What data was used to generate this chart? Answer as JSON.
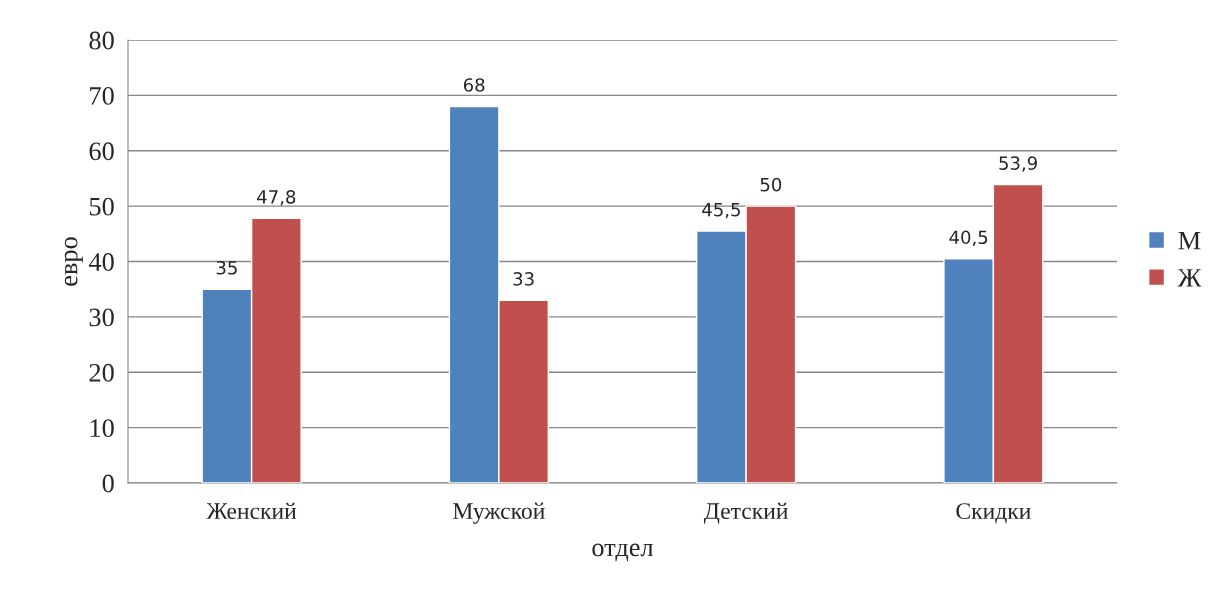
{
  "chart_data": {
    "type": "bar",
    "xlabel": "отдел",
    "ylabel": "евро",
    "categories": [
      "Женский",
      "Мужской",
      "Детский",
      "Скидки"
    ],
    "series": [
      {
        "name": "М",
        "color": "#4f81bd",
        "values": [
          35,
          68,
          45.5,
          40.5
        ],
        "value_labels": [
          "35",
          "68",
          "45,5",
          "40,5"
        ]
      },
      {
        "name": "Ж",
        "color": "#c0504d",
        "values": [
          47.8,
          33,
          50,
          53.9
        ],
        "value_labels": [
          "47,8",
          "33",
          "50",
          "53,9"
        ]
      }
    ],
    "ylim": [
      0,
      80
    ],
    "yticks": [
      0,
      10,
      20,
      30,
      40,
      50,
      60,
      70,
      80
    ],
    "grid": "y",
    "legend": "right"
  }
}
